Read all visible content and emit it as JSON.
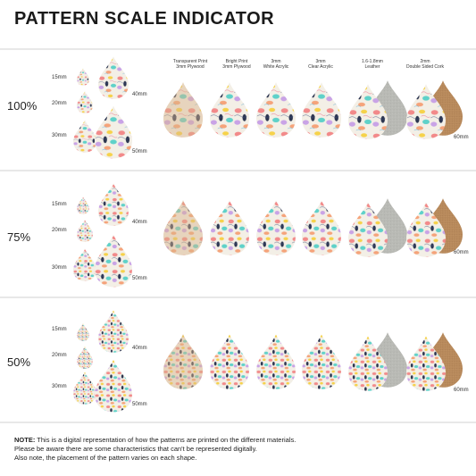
{
  "title": "PATTERN SCALE INDICATOR",
  "materials": [
    {
      "line1": "Transparent Print",
      "line2": "3mm Plywood"
    },
    {
      "line1": "Bright Print",
      "line2": "3mm Plywood"
    },
    {
      "line1": "3mm",
      "line2": "White Acrylic"
    },
    {
      "line1": "3mm",
      "line2": "Clear Acrylic"
    },
    {
      "line1": "1.6-1.8mm",
      "line2": "Leather"
    },
    {
      "line1": "2mm",
      "line2": "Double Sided Cork"
    }
  ],
  "sizes": {
    "s15": "15mm",
    "s20": "20mm",
    "s30": "30mm",
    "s40": "40mm",
    "s50": "50mm",
    "s60": "60mm"
  },
  "scales": [
    {
      "label": "100%"
    },
    {
      "label": "75%"
    },
    {
      "label": "50%"
    }
  ],
  "note": {
    "bold": "NOTE:",
    "line1": " This is a digital representation of how the patterns are printed on the different materials.",
    "line2": "Please be aware there are some characteristics that can't be represented digitally.",
    "line3": "Also note, the placement of the pattern varies on each shape."
  }
}
